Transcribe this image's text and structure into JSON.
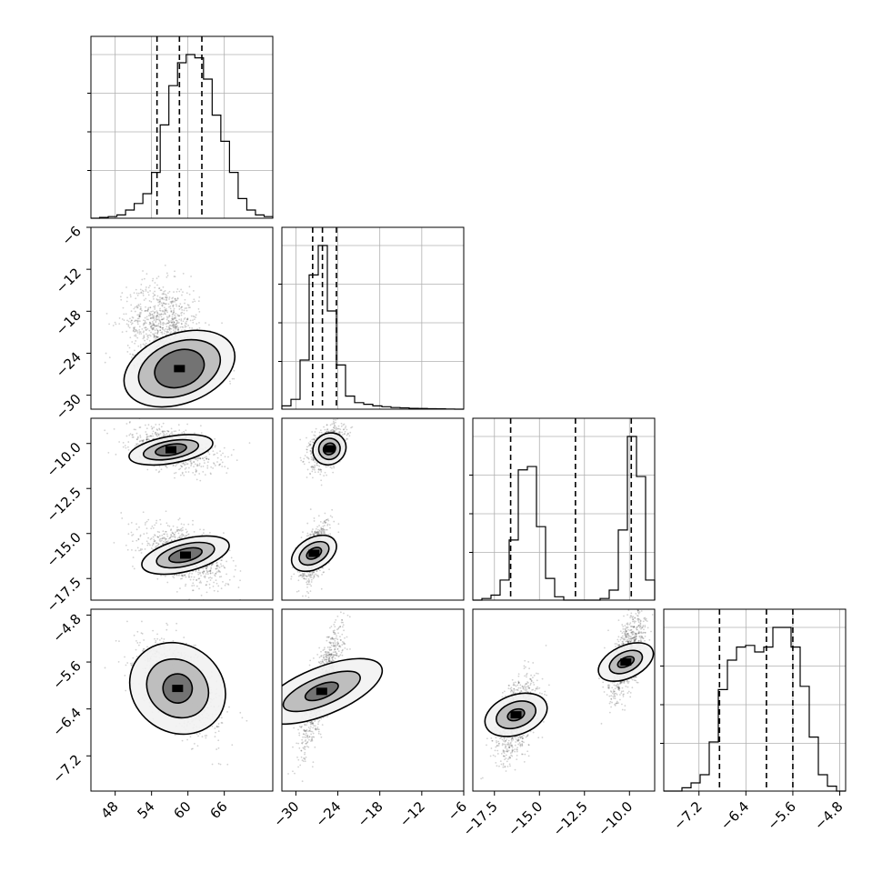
{
  "chart_data": {
    "type": "corner",
    "params": [
      {
        "range": [
          44,
          74
        ],
        "ticks": [
          48,
          54,
          60,
          66
        ],
        "tick_labels": [
          "48",
          "54",
          "60",
          "66"
        ],
        "hist_bins": [
          0,
          0.5,
          1,
          2,
          5,
          9,
          15,
          28,
          57,
          81,
          95,
          100,
          98,
          85,
          63,
          47,
          28,
          12,
          5,
          2,
          1
        ],
        "quantiles": [
          54.9,
          58.6,
          62.3
        ]
      },
      {
        "range": [
          -32,
          -6
        ],
        "ticks": [
          -30,
          -24,
          -18,
          -12,
          -6
        ],
        "tick_labels": [
          "−30",
          "−24",
          "−18",
          "−12",
          "−6"
        ],
        "hist_bins": [
          2,
          6,
          30,
          82,
          100,
          60,
          27,
          8,
          4,
          3,
          2,
          1.5,
          1,
          0.8,
          0.5,
          0.4,
          0.3,
          0.2,
          0.1,
          0
        ],
        "quantiles": [
          -27.6,
          -26.2,
          -24.2
        ]
      },
      {
        "range": [
          -18.7,
          -8.6
        ],
        "ticks": [
          -17.5,
          -15.0,
          -12.5,
          -10.0
        ],
        "tick_labels": [
          "−17.5",
          "−15.0",
          "−12.5",
          "−10.0"
        ],
        "hist_bins": [
          0,
          1,
          3,
          12,
          36,
          78,
          80,
          44,
          13,
          2,
          0,
          0,
          0,
          0,
          1,
          6,
          42,
          98,
          74,
          12
        ],
        "quantiles": [
          -16.6,
          -13.0,
          -9.9
        ]
      },
      {
        "range": [
          -7.8,
          -4.7
        ],
        "ticks": [
          -7.2,
          -6.4,
          -5.6,
          -4.8
        ],
        "tick_labels": [
          "−7.2",
          "−6.4",
          "−5.6",
          "−4.8"
        ],
        "hist_bins": [
          0,
          0,
          2,
          5,
          10,
          30,
          62,
          80,
          88,
          89,
          85,
          88,
          100,
          100,
          88,
          64,
          33,
          10,
          3,
          0
        ],
        "quantiles": [
          -6.85,
          -6.05,
          -5.6
        ]
      }
    ],
    "pairs": [
      {
        "x": 0,
        "y": 1,
        "scatter_centers": [
          [
            58.6,
            -26.2,
            3,
            0.9,
            -0.5
          ],
          [
            56,
            -20,
            3,
            3,
            -0.1
          ]
        ],
        "contour_center": [
          58.6,
          -26.2
        ],
        "contour_axes": [
          [
            4.2,
            2.6
          ],
          [
            7.0,
            3.8
          ],
          [
            9.5,
            5.0
          ]
        ],
        "contour_angle": -20
      },
      {
        "x": 0,
        "y": 2,
        "scatter_centers": [
          [
            57.5,
            -10.3,
            3.5,
            0.6,
            -0.4
          ],
          [
            59.5,
            -16.2,
            3.5,
            0.8,
            -0.5
          ]
        ],
        "contour_blobs": [
          [
            [
              57.2,
              -10.35
            ],
            [
              [
                2.6,
                0.3
              ],
              [
                4.6,
                0.5
              ],
              [
                7.0,
                0.75
              ]
            ],
            -10
          ],
          [
            [
              59.6,
              -16.2
            ],
            [
              [
                2.8,
                0.35
              ],
              [
                4.9,
                0.6
              ],
              [
                7.4,
                0.9
              ]
            ],
            -14
          ]
        ]
      },
      {
        "x": 0,
        "y": 3,
        "scatter_centers": [
          [
            58.6,
            -6.0,
            3.4,
            0.4,
            -0.55
          ]
        ],
        "contour_center": [
          58.3,
          -6.05
        ],
        "contour_axes": [
          [
            2.4,
            0.25
          ],
          [
            4.6,
            0.55
          ],
          [
            7.2,
            0.85
          ]
        ],
        "contour_angle": -55
      },
      {
        "x": 1,
        "y": 2,
        "scatter_centers": [
          [
            -25.5,
            -10.2,
            1.2,
            0.6,
            0.4
          ],
          [
            -27.4,
            -16.1,
            1.1,
            0.8,
            0.5
          ]
        ],
        "contour_blobs": [
          [
            [
              -25.2,
              -10.3
            ],
            [
              [
                0.8,
                0.35
              ],
              [
                1.5,
                0.6
              ],
              [
                2.2,
                0.95
              ]
            ],
            55
          ],
          [
            [
              -27.4,
              -16.1
            ],
            [
              [
                0.7,
                0.45
              ],
              [
                1.4,
                0.9
              ],
              [
                2.2,
                1.35
              ]
            ],
            60
          ]
        ]
      },
      {
        "x": 1,
        "y": 3,
        "scatter_centers": [
          [
            -26.2,
            -6.0,
            1.5,
            0.55,
            0.85
          ]
        ],
        "contour_center": [
          -26.3,
          -6.1
        ],
        "contour_axes": [
          [
            1.0,
            0.3
          ],
          [
            2.0,
            0.7
          ],
          [
            3.4,
            1.1
          ]
        ],
        "contour_angle": 68
      },
      {
        "x": 2,
        "y": 3,
        "scatter_centers": [
          [
            -16.3,
            -6.55,
            0.6,
            0.35,
            0.5
          ],
          [
            -10.1,
            -5.5,
            0.5,
            0.35,
            0.6
          ]
        ],
        "contour_blobs": [
          [
            [
              -16.3,
              -6.5
            ],
            [
              [
                0.3,
                0.15
              ],
              [
                0.7,
                0.35
              ],
              [
                1.1,
                0.55
              ]
            ],
            70
          ],
          [
            [
              -10.2,
              -5.6
            ],
            [
              [
                0.25,
                0.15
              ],
              [
                0.55,
                0.3
              ],
              [
                0.9,
                0.5
              ]
            ],
            65
          ]
        ]
      }
    ]
  }
}
